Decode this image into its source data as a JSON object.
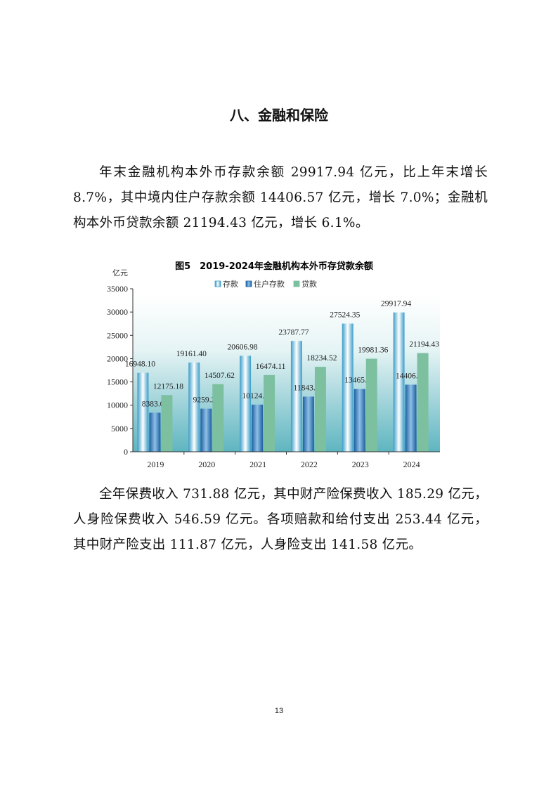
{
  "section_title": "八、金融和保险",
  "paragraph1": "年末金融机构本外币存款余额 29917.94 亿元，比上年末增长 8.7%，其中境内住户存款余额 14406.57 亿元，增长 7.0%；金融机构本外币贷款余额 21194.43 亿元，增长 6.1%。",
  "paragraph2": "全年保费收入 731.88 亿元，其中财产险保费收入 185.29 亿元，人身险保费收入 546.59 亿元。各项赔款和给付支出 253.44 亿元，其中财产险支出 111.87 亿元，人身险支出 141.58 亿元。",
  "page_number": "13",
  "chart_data": {
    "type": "bar",
    "title": "图5　2019-2024年金融机构本外币存贷款余额",
    "ylabel": "亿元",
    "xlabel": "",
    "ylim": [
      0,
      35000
    ],
    "yticks": [
      "0",
      "5000",
      "10000",
      "15000",
      "20000",
      "25000",
      "30000",
      "35000"
    ],
    "categories": [
      "2019",
      "2020",
      "2021",
      "2022",
      "2023",
      "2024"
    ],
    "legend_position": "top",
    "grid": false,
    "series": [
      {
        "name": "存款",
        "color": "#3a9cc8",
        "values": [
          16948.1,
          19161.4,
          20606.98,
          23787.77,
          27524.35,
          29917.94
        ],
        "labels": [
          "16948.10",
          "19161.40",
          "20606.98",
          "23787.77",
          "27524.35",
          "29917.94"
        ]
      },
      {
        "name": "住户存款",
        "color": "#1d5fa0",
        "values": [
          8383.03,
          9259.24,
          10124.6,
          11843.25,
          13465.18,
          14406.57
        ],
        "labels": [
          "8383.03",
          "9259.24",
          "10124.60",
          "11843.25",
          "13465.18",
          "14406.57"
        ]
      },
      {
        "name": "贷款",
        "color": "#7cc0a0",
        "values": [
          12175.18,
          14507.62,
          16474.11,
          18234.52,
          19981.36,
          21194.43
        ],
        "labels": [
          "12175.18",
          "14507.62",
          "16474.11",
          "18234.52",
          "19981.36",
          "21194.43"
        ]
      }
    ]
  }
}
